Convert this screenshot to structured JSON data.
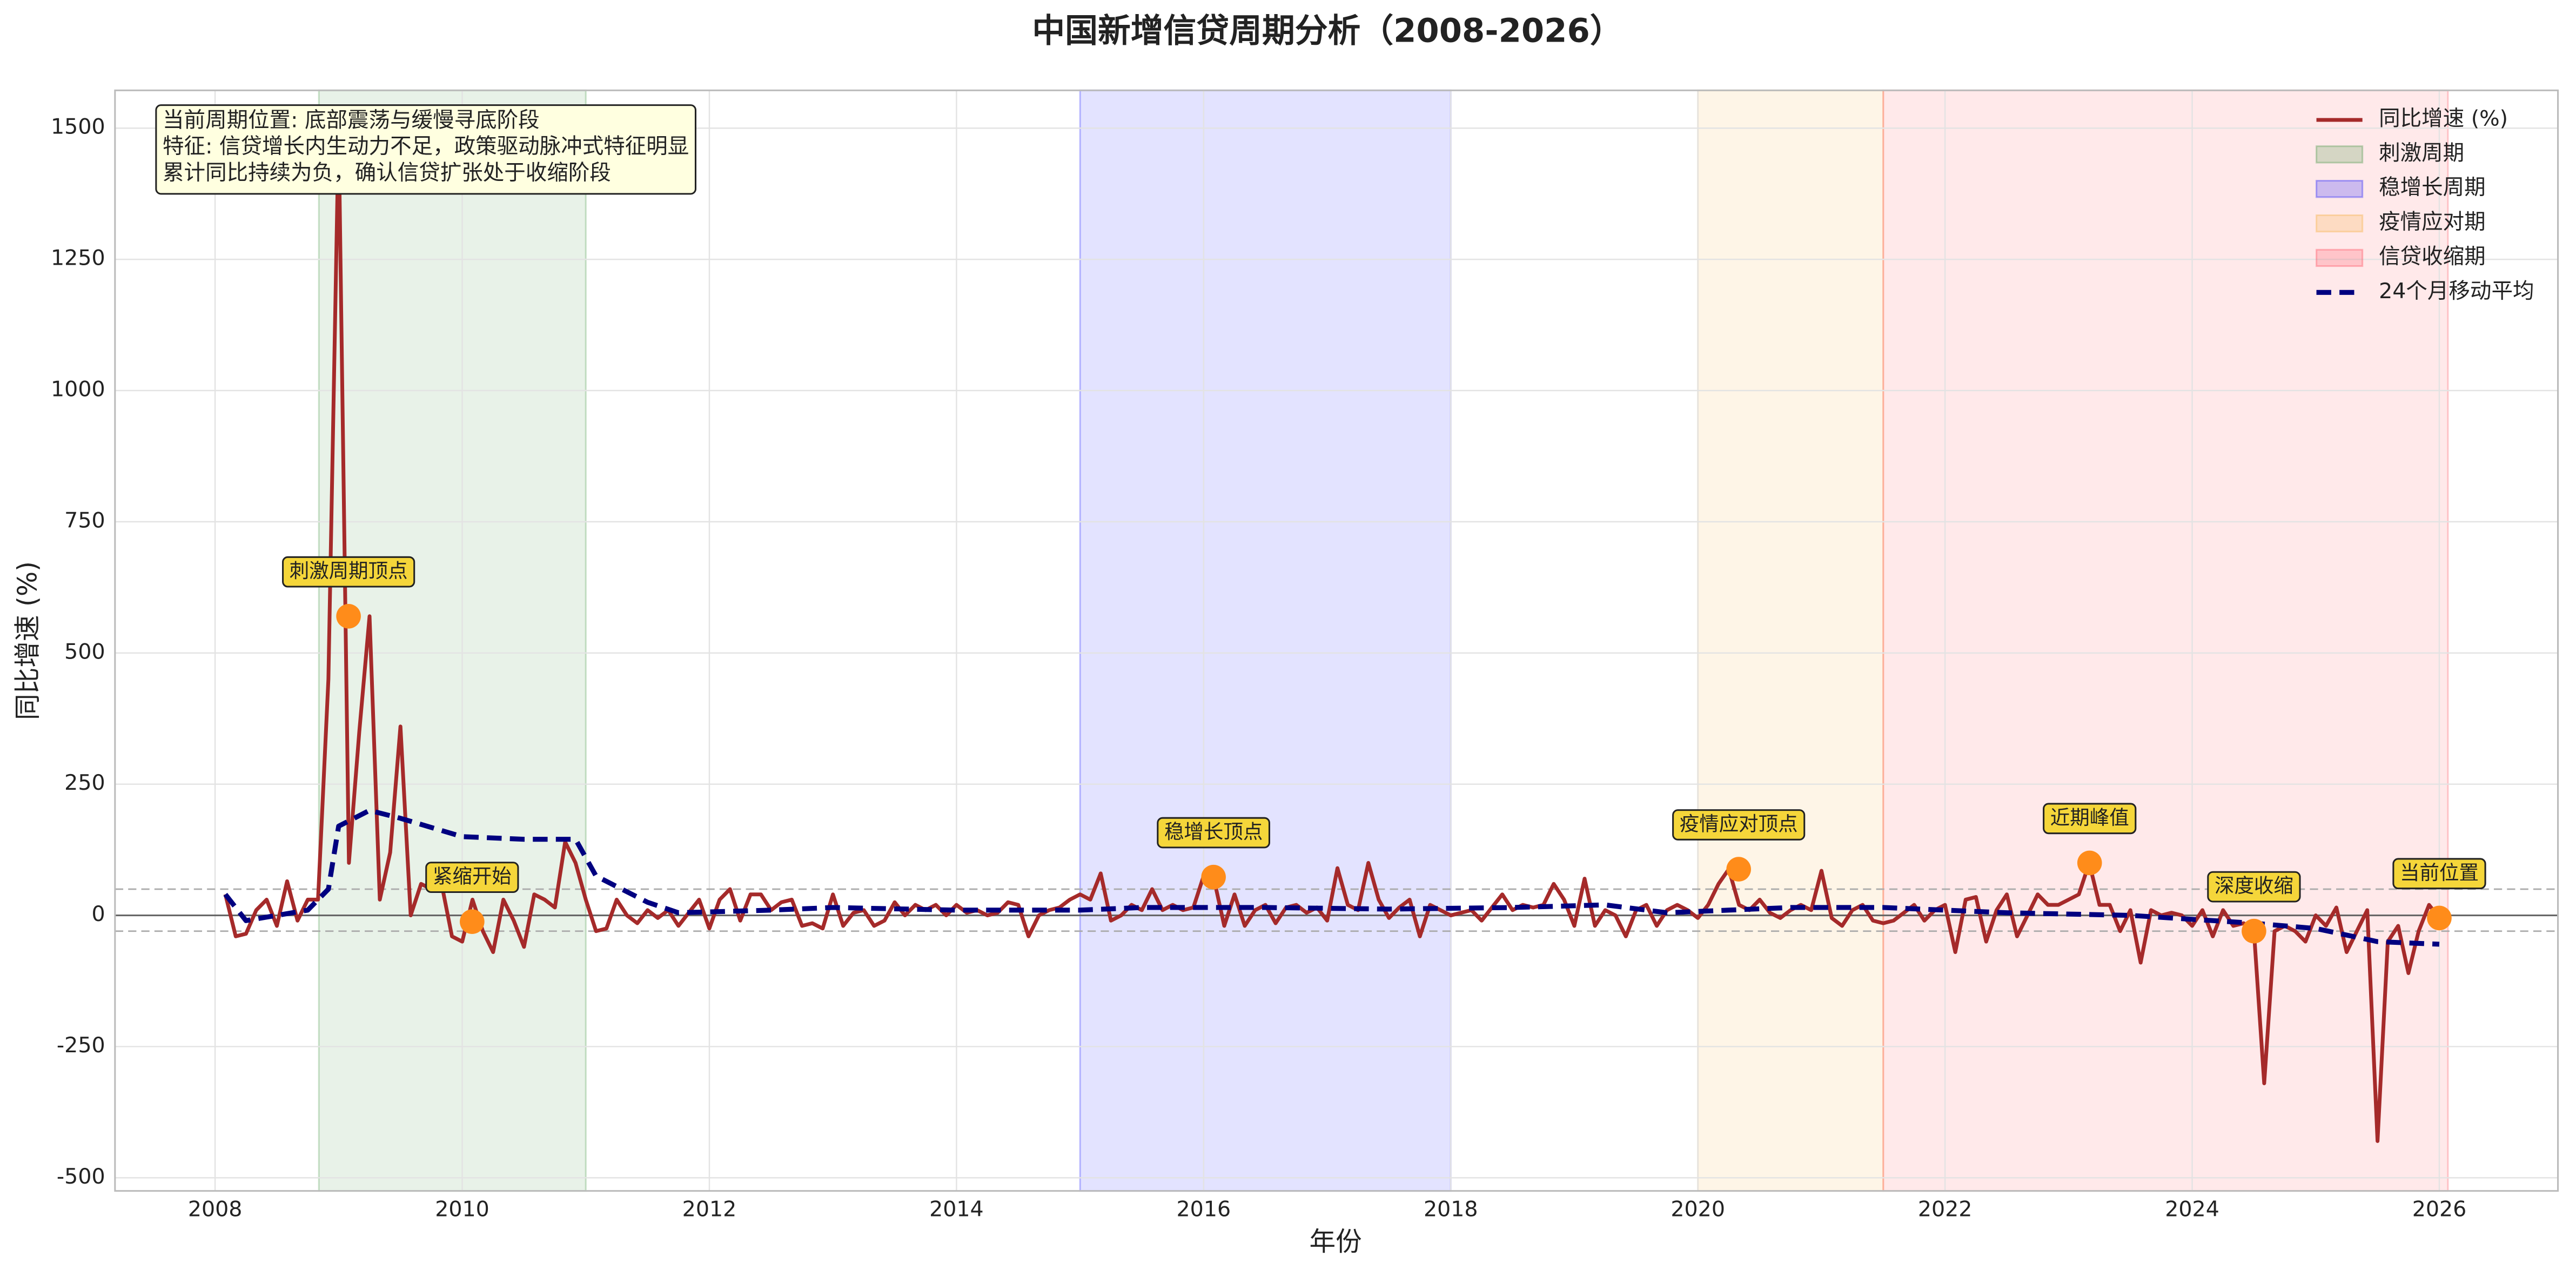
{
  "chart_data": {
    "type": "line",
    "title": "中国新增信贷周期分析（2008-2026）",
    "x_label": "年份",
    "y_label": "同比增速 (%)",
    "xlim": [
      2007.19,
      2026.96
    ],
    "ylim": [
      -525,
      1572
    ],
    "xticks": [
      2008,
      2010,
      2012,
      2014,
      2016,
      2018,
      2020,
      2022,
      2024,
      2026
    ],
    "yticks": [
      -500,
      -250,
      0,
      250,
      500,
      750,
      1000,
      1250,
      1500
    ],
    "grid": true,
    "legend": "upper right",
    "series": [
      {
        "name": "同比增速 (%)",
        "color": "#a52a2a",
        "style": "solid",
        "x": [
          2008.083,
          2008.167,
          2008.25,
          2008.333,
          2008.417,
          2008.5,
          2008.583,
          2008.667,
          2008.75,
          2008.833,
          2008.917,
          2009.0,
          2009.083,
          2009.167,
          2009.25,
          2009.333,
          2009.417,
          2009.5,
          2009.583,
          2009.667,
          2009.75,
          2009.833,
          2009.917,
          2010.0,
          2010.083,
          2010.167,
          2010.25,
          2010.333,
          2010.417,
          2010.5,
          2010.583,
          2010.667,
          2010.75,
          2010.833,
          2010.917,
          2011.0,
          2011.083,
          2011.167,
          2011.25,
          2011.333,
          2011.417,
          2011.5,
          2011.583,
          2011.667,
          2011.75,
          2011.833,
          2011.917,
          2012.0,
          2012.083,
          2012.167,
          2012.25,
          2012.333,
          2012.417,
          2012.5,
          2012.583,
          2012.667,
          2012.75,
          2012.833,
          2012.917,
          2013.0,
          2013.083,
          2013.167,
          2013.25,
          2013.333,
          2013.417,
          2013.5,
          2013.583,
          2013.667,
          2013.75,
          2013.833,
          2013.917,
          2014.0,
          2014.083,
          2014.167,
          2014.25,
          2014.333,
          2014.417,
          2014.5,
          2014.583,
          2014.667,
          2014.75,
          2014.833,
          2014.917,
          2015.0,
          2015.083,
          2015.167,
          2015.25,
          2015.333,
          2015.417,
          2015.5,
          2015.583,
          2015.667,
          2015.75,
          2015.833,
          2015.917,
          2016.0,
          2016.083,
          2016.167,
          2016.25,
          2016.333,
          2016.417,
          2016.5,
          2016.583,
          2016.667,
          2016.75,
          2016.833,
          2016.917,
          2017.0,
          2017.083,
          2017.167,
          2017.25,
          2017.333,
          2017.417,
          2017.5,
          2017.583,
          2017.667,
          2017.75,
          2017.833,
          2017.917,
          2018.0,
          2018.083,
          2018.167,
          2018.25,
          2018.333,
          2018.417,
          2018.5,
          2018.583,
          2018.667,
          2018.75,
          2018.833,
          2018.917,
          2019.0,
          2019.083,
          2019.167,
          2019.25,
          2019.333,
          2019.417,
          2019.5,
          2019.583,
          2019.667,
          2019.75,
          2019.833,
          2019.917,
          2020.0,
          2020.083,
          2020.167,
          2020.25,
          2020.333,
          2020.417,
          2020.5,
          2020.583,
          2020.667,
          2020.75,
          2020.833,
          2020.917,
          2021.0,
          2021.083,
          2021.167,
          2021.25,
          2021.333,
          2021.417,
          2021.5,
          2021.583,
          2021.667,
          2021.75,
          2021.833,
          2021.917,
          2022.0,
          2022.083,
          2022.167,
          2022.25,
          2022.333,
          2022.417,
          2022.5,
          2022.583,
          2022.667,
          2022.75,
          2022.833,
          2022.917,
          2023.0,
          2023.083,
          2023.167,
          2023.25,
          2023.333,
          2023.417,
          2023.5,
          2023.583,
          2023.667,
          2023.75,
          2023.833,
          2023.917,
          2024.0,
          2024.083,
          2024.167,
          2024.25,
          2024.333,
          2024.417,
          2024.5,
          2024.583,
          2024.667,
          2024.75,
          2024.833,
          2024.917,
          2025.0,
          2025.083,
          2025.167,
          2025.25,
          2025.333,
          2025.417,
          2025.5,
          2025.583,
          2025.667,
          2025.75,
          2025.833,
          2025.917,
          2026.0
        ],
        "values": [
          40,
          -40,
          -35,
          10,
          30,
          -20,
          65,
          -10,
          30,
          30,
          450,
          1500,
          100,
          350,
          570,
          30,
          120,
          360,
          0,
          60,
          50,
          60,
          -40,
          -50,
          30,
          -30,
          -70,
          30,
          -10,
          -60,
          40,
          30,
          15,
          140,
          100,
          30,
          -30,
          -25,
          30,
          0,
          -15,
          10,
          -5,
          10,
          -20,
          5,
          30,
          -25,
          30,
          50,
          -10,
          40,
          40,
          10,
          25,
          30,
          -20,
          -15,
          -25,
          40,
          -20,
          5,
          10,
          -20,
          -10,
          25,
          0,
          20,
          10,
          20,
          0,
          20,
          5,
          10,
          0,
          5,
          25,
          20,
          -40,
          0,
          10,
          15,
          30,
          40,
          30,
          80,
          -10,
          0,
          20,
          10,
          50,
          10,
          20,
          10,
          15,
          75,
          70,
          -20,
          40,
          -20,
          10,
          20,
          -15,
          15,
          20,
          5,
          15,
          -10,
          90,
          20,
          10,
          100,
          30,
          -5,
          15,
          30,
          -40,
          20,
          10,
          0,
          5,
          10,
          -10,
          15,
          40,
          10,
          20,
          15,
          20,
          60,
          30,
          -20,
          70,
          -20,
          10,
          0,
          -40,
          10,
          20,
          -20,
          10,
          20,
          10,
          -5,
          20,
          60,
          88,
          20,
          10,
          30,
          5,
          -5,
          10,
          20,
          10,
          85,
          -5,
          -20,
          10,
          20,
          -10,
          -15,
          -10,
          5,
          20,
          -10,
          10,
          20,
          -70,
          30,
          35,
          -50,
          10,
          40,
          -40,
          0,
          40,
          20,
          20,
          30,
          40,
          100,
          20,
          20,
          -30,
          10,
          -90,
          10,
          0,
          5,
          0,
          -20,
          10,
          -40,
          10,
          -20,
          -15,
          -30,
          -320,
          -30,
          -20,
          -30,
          -50,
          0,
          -20,
          15,
          -70,
          -30,
          10,
          -430,
          -50,
          -20,
          -110,
          -30,
          20,
          -5
        ]
      },
      {
        "name": "24个月移动平均",
        "color": "#000080",
        "style": "dashed",
        "x": [
          2008.083,
          2008.25,
          2008.5,
          2008.75,
          2008.917,
          2009.0,
          2009.25,
          2009.5,
          2010.0,
          2010.5,
          2010.917,
          2011.083,
          2011.5,
          2011.75,
          2012.5,
          2013.0,
          2014.0,
          2015.0,
          2015.5,
          2016.5,
          2017.5,
          2018.5,
          2019.25,
          2019.75,
          2020.25,
          2020.75,
          2021.5,
          2022.5,
          2023.5,
          2024.5,
          2025.0,
          2025.5,
          2026.0
        ],
        "values": [
          40,
          -10,
          0,
          10,
          50,
          170,
          200,
          185,
          150,
          145,
          145,
          75,
          25,
          5,
          10,
          15,
          10,
          10,
          15,
          15,
          12,
          15,
          20,
          5,
          10,
          15,
          15,
          5,
          0,
          -15,
          -25,
          -50,
          -55
        ]
      }
    ],
    "spans": [
      {
        "name": "刺激周期",
        "start": 2008.84,
        "end": 2011.0,
        "color": "#2e8b2e"
      },
      {
        "name": "稳增长周期",
        "start": 2015.0,
        "end": 2018.0,
        "color": "#0000ff"
      },
      {
        "name": "疫情应对期",
        "start": 2020.0,
        "end": 2021.5,
        "color": "#f5a623"
      },
      {
        "name": "信贷收缩期",
        "start": 2021.5,
        "end": 2026.07,
        "color": "#ff3344"
      }
    ],
    "reference_lines": [
      {
        "y": 0,
        "style": "solid"
      },
      {
        "y": 50,
        "style": "dashed"
      },
      {
        "y": -30,
        "style": "dashed"
      }
    ],
    "annotations": [
      {
        "text": "刺激周期顶点",
        "x": 2009.08,
        "y": 570
      },
      {
        "text": "紧缩开始",
        "x": 2010.08,
        "y": -12
      },
      {
        "text": "稳增长顶点",
        "x": 2016.08,
        "y": 73
      },
      {
        "text": "疫情应对顶点",
        "x": 2020.33,
        "y": 88
      },
      {
        "text": "近期峰值",
        "x": 2023.17,
        "y": 100
      },
      {
        "text": "深度收缩",
        "x": 2024.5,
        "y": -30
      },
      {
        "text": "当前位置",
        "x": 2026.0,
        "y": -5
      }
    ],
    "info_box": [
      "当前周期位置: 底部震荡与缓慢寻底阶段",
      "特征: 信贷增长内生动力不足，政策驱动脉冲式特征明显",
      "累计同比持续为负，确认信贷扩张处于收缩阶段"
    ]
  }
}
